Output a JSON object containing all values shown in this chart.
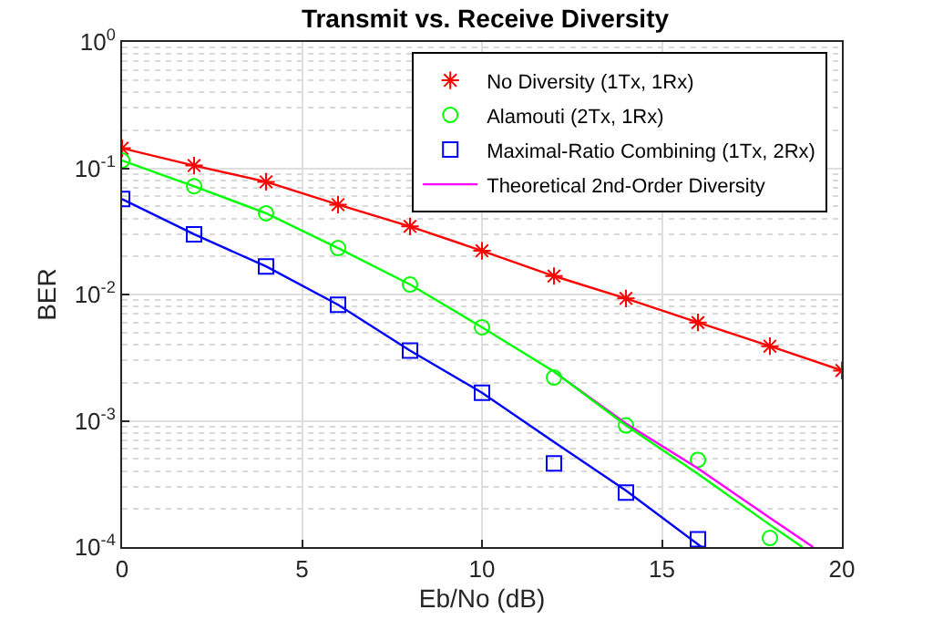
{
  "chart_data": {
    "type": "scatter",
    "title": "Transmit vs. Receive Diversity",
    "xlabel": "Eb/No (dB)",
    "ylabel": "BER",
    "x": [
      0,
      2,
      4,
      6,
      8,
      10,
      12,
      14,
      16,
      18,
      20
    ],
    "series": [
      {
        "name": "No Diversity (1Tx, 1Rx)",
        "marker": "cross",
        "color": "#ff0000",
        "values": [
          0.144,
          0.105,
          0.078,
          0.0515,
          0.0346,
          0.0222,
          0.014,
          0.0093,
          0.006,
          0.0039,
          0.0025
        ]
      },
      {
        "name": "Alamouti (2Tx, 1Rx)",
        "marker": "circle",
        "color": "#00ff00",
        "values": [
          0.115,
          0.072,
          0.044,
          0.0233,
          0.012,
          0.0055,
          0.0022,
          0.00092,
          0.00049,
          0.000118,
          null
        ]
      },
      {
        "name": "Maximal-Ratio Combining (1Tx, 2Rx)",
        "marker": "square",
        "color": "#0000ff",
        "values": [
          0.057,
          0.03,
          0.0167,
          0.0083,
          0.0036,
          0.00167,
          0.00046,
          0.00027,
          0.000115,
          null,
          null
        ]
      },
      {
        "name": "Theoretical 2nd-Order Diversity",
        "type": "line",
        "color": "#ff00ff",
        "x": [
          12,
          14,
          16,
          18,
          19.2
        ],
        "values": [
          0.00245,
          0.00095,
          0.00042,
          0.00017,
          0.0001
        ]
      },
      {
        "type": "line",
        "color": "#ff0000",
        "values": [
          0.144,
          0.105,
          0.078,
          0.0515,
          0.0346,
          0.0222,
          0.014,
          0.0093,
          0.006,
          0.0039,
          0.0025
        ]
      },
      {
        "type": "line",
        "color": "#00ff00",
        "x": [
          0,
          2,
          4,
          6,
          8,
          10,
          12,
          14,
          16,
          18,
          18.9
        ],
        "values": [
          0.115,
          0.072,
          0.044,
          0.0233,
          0.012,
          0.0055,
          0.00245,
          0.00092,
          0.00038,
          0.00015,
          0.0001
        ]
      },
      {
        "type": "line",
        "color": "#0000ff",
        "x": [
          0,
          2,
          4,
          6,
          8,
          10,
          12,
          14,
          16.1
        ],
        "values": [
          0.057,
          0.03,
          0.0167,
          0.0083,
          0.0036,
          0.00167,
          0.00068,
          0.00028,
          0.0001
        ]
      }
    ],
    "log": "y",
    "xlim": [
      0,
      20
    ],
    "xticks": [
      0,
      5,
      10,
      15,
      20
    ],
    "ylim": [
      0.0001,
      1
    ],
    "yticks": [
      {
        "value": 0.0001,
        "label": "10$^{-4}$"
      },
      {
        "value": 0.001,
        "label": "10$^{-3}$"
      },
      {
        "value": 0.01,
        "label": "10$^{-2}$"
      },
      {
        "value": 0.1,
        "label": "10$^{-1}$"
      },
      {
        "value": 1,
        "label": "10$^{0}$"
      }
    ],
    "grid": true,
    "legend": "top right"
  }
}
